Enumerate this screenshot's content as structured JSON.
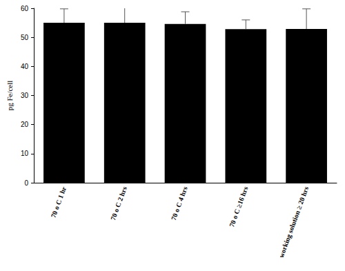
{
  "chart_data": {
    "type": "bar",
    "y_label": "pg Fe/cell",
    "categories": [
      "70 o C 1 hr",
      "70 o C 2 hrs",
      "70 o C 4 hrs",
      "70 o C ≥16 hrs",
      "working solution ≥ 20 hrs"
    ],
    "values": [
      55.0,
      55.0,
      54.6,
      52.8,
      52.9
    ],
    "errors": [
      4.8,
      5.5,
      4.2,
      3.2,
      6.9
    ],
    "color": "#000000",
    "ylim": [
      0,
      60
    ],
    "yticks": [
      0,
      10,
      20,
      30,
      40,
      50,
      60
    ],
    "grid": false
  }
}
